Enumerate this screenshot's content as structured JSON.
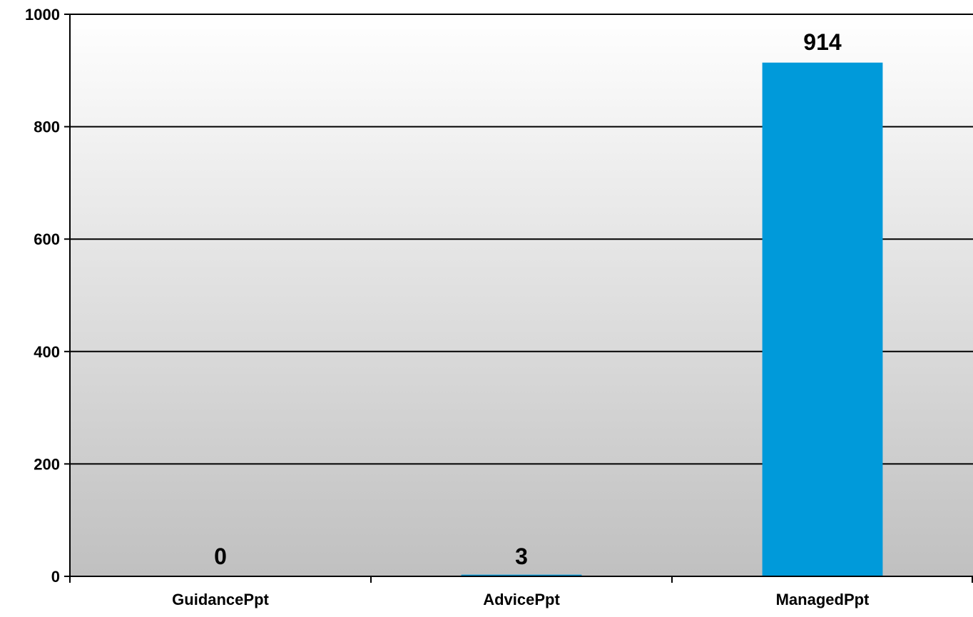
{
  "chart_data": {
    "type": "bar",
    "categories": [
      "GuidancePpt",
      "AdvicePpt",
      "ManagedPpt"
    ],
    "values": [
      0,
      3,
      914
    ],
    "data_labels": [
      "0",
      "3",
      "914"
    ],
    "ylim": [
      0,
      1000
    ],
    "yticks": [
      0,
      200,
      400,
      600,
      800,
      1000
    ],
    "grid": true,
    "legend": "none",
    "bar_color": "#009ADA",
    "plot_background": [
      "#FFFFFF",
      "#C0C0C0"
    ]
  }
}
